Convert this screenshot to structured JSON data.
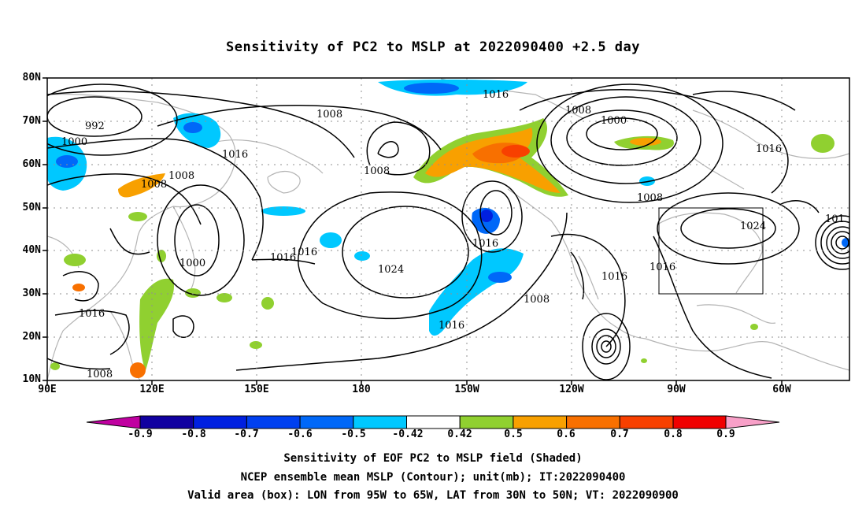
{
  "title": "Sensitivity of PC2 to MSLP at 2022090400 +2.5 day",
  "lat_labels": [
    "80N",
    "70N",
    "60N",
    "50N",
    "40N",
    "30N",
    "20N",
    "10N"
  ],
  "lon_labels": [
    "90E",
    "120E",
    "150E",
    "180",
    "150W",
    "120W",
    "90W",
    "60W"
  ],
  "contour_labels": [
    "992",
    "1000",
    "1016",
    "1008",
    "1008",
    "1008",
    "1016",
    "1008",
    "1008",
    "1000",
    "1008",
    "1016",
    "1024",
    "1016",
    "1016",
    "1024",
    "1016",
    "1016",
    "1000",
    "1016",
    "1008",
    "1016",
    "1016",
    "1008",
    "101"
  ],
  "colorbar": {
    "labels": [
      "-0.9",
      "-0.8",
      "-0.7",
      "-0.6",
      "-0.5",
      "-0.42",
      "0.42",
      "0.5",
      "0.6",
      "0.7",
      "0.8",
      "0.9"
    ],
    "colors": [
      "#1000a0",
      "#0020e0",
      "#0040f0",
      "#0068f8",
      "#0098ff",
      "#00c8ff",
      "#ffffff",
      "#90d030",
      "#f8a000",
      "#f87000",
      "#f84000",
      "#f00000"
    ],
    "end_left": "#c000a0",
    "end_right": "#f8a0c8"
  },
  "footer": {
    "line1": "Sensitivity of EOF PC2 to MSLP field (Shaded)",
    "line2": "NCEP ensemble mean MSLP (Contour); unit(mb); IT:2022090400",
    "line3": "Valid area (box): LON from 95W to 65W, LAT from 30N to 50N; VT: 2022090900"
  }
}
